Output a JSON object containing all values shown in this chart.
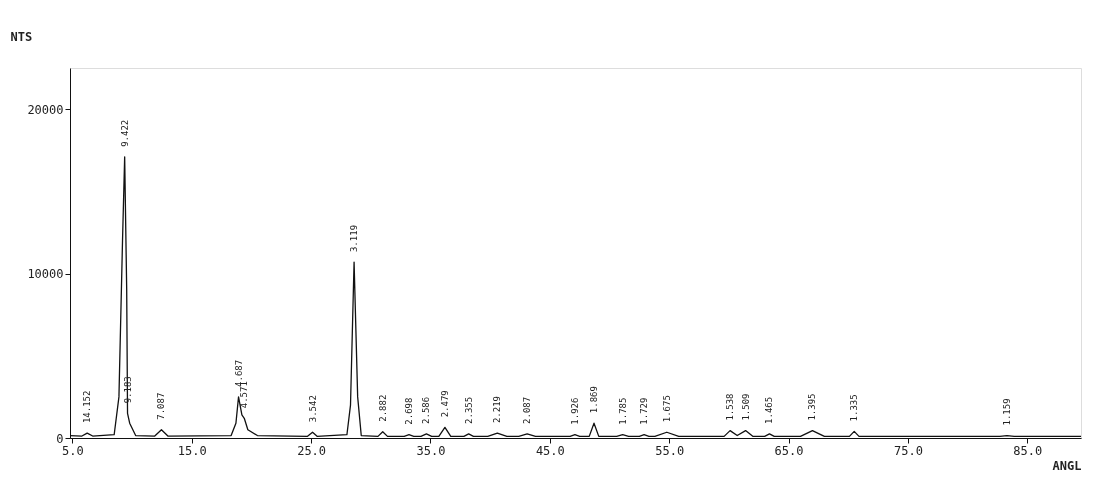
{
  "chart_data": {
    "type": "line",
    "ylabel": "NTS",
    "xlabel": "ANGL",
    "xlim": [
      4.8,
      89.5
    ],
    "ylim": [
      0,
      22500
    ],
    "xticks": [
      {
        "value": 5,
        "label": "5.0"
      },
      {
        "value": 15,
        "label": "15.0"
      },
      {
        "value": 25,
        "label": "25.0"
      },
      {
        "value": 35,
        "label": "35.0"
      },
      {
        "value": 45,
        "label": "45.0"
      },
      {
        "value": 55,
        "label": "55.0"
      },
      {
        "value": 65,
        "label": "65.0"
      },
      {
        "value": 75,
        "label": "75.0"
      },
      {
        "value": 85,
        "label": "85.0"
      }
    ],
    "yticks": [
      0,
      10000,
      20000
    ],
    "grid": false,
    "marker": "none",
    "line_style": "solid",
    "series": [
      {
        "color": "#111111",
        "x": [
          4.8,
          5.8,
          6.24,
          6.7,
          8.5,
          8.9,
          9.2,
          9.38,
          9.55,
          9.62,
          9.8,
          10.3,
          11.9,
          12.46,
          13.0,
          18.3,
          18.7,
          18.92,
          19.2,
          19.4,
          19.7,
          20.5,
          24.7,
          25.12,
          25.5,
          28.0,
          28.3,
          28.6,
          28.9,
          29.2,
          30.6,
          31.0,
          31.4,
          32.8,
          33.2,
          33.6,
          34.2,
          34.66,
          35.1,
          35.7,
          36.21,
          36.7,
          37.8,
          38.2,
          38.6,
          39.8,
          40.6,
          41.4,
          42.4,
          43.1,
          43.8,
          46.7,
          47.1,
          47.5,
          48.3,
          48.7,
          49.1,
          50.6,
          51.1,
          51.6,
          52.5,
          52.9,
          53.3,
          53.8,
          54.8,
          55.8,
          59.6,
          60.1,
          60.7,
          61.4,
          62.0,
          63.0,
          63.4,
          63.8,
          66.0,
          67.0,
          68.0,
          70.1,
          70.5,
          70.9,
          82.7,
          83.3,
          83.9,
          89.5
        ],
        "values": [
          150,
          120,
          300,
          120,
          200,
          2500,
          12000,
          17100,
          9000,
          1500,
          900,
          150,
          120,
          500,
          120,
          150,
          900,
          2500,
          1400,
          1200,
          500,
          150,
          100,
          350,
          100,
          200,
          2000,
          10700,
          2500,
          150,
          100,
          380,
          100,
          100,
          200,
          100,
          100,
          250,
          100,
          100,
          650,
          100,
          100,
          250,
          100,
          100,
          300,
          100,
          100,
          250,
          100,
          100,
          200,
          100,
          100,
          900,
          100,
          100,
          200,
          100,
          100,
          200,
          100,
          100,
          350,
          100,
          100,
          450,
          150,
          450,
          100,
          100,
          250,
          100,
          100,
          450,
          100,
          100,
          400,
          100,
          100,
          150,
          100,
          100
        ]
      }
    ],
    "annotations": [
      {
        "text": "14.152",
        "x": 6.24,
        "y": 300
      },
      {
        "text": "9.422",
        "x": 9.38,
        "y": 17100
      },
      {
        "text": "9.183",
        "x": 9.62,
        "y": 1500
      },
      {
        "text": "7.087",
        "x": 12.46,
        "y": 500
      },
      {
        "text": "4.687",
        "x": 18.92,
        "y": 2500
      },
      {
        "text": "4.571",
        "x": 19.4,
        "y": 1200
      },
      {
        "text": "3.542",
        "x": 25.12,
        "y": 350
      },
      {
        "text": "3.119",
        "x": 28.6,
        "y": 10700
      },
      {
        "text": "2.882",
        "x": 31.0,
        "y": 380
      },
      {
        "text": "2.698",
        "x": 33.2,
        "y": 200
      },
      {
        "text": "2.586",
        "x": 34.66,
        "y": 250
      },
      {
        "text": "2.479",
        "x": 36.21,
        "y": 650
      },
      {
        "text": "2.355",
        "x": 38.2,
        "y": 250
      },
      {
        "text": "2.219",
        "x": 40.6,
        "y": 300
      },
      {
        "text": "2.087",
        "x": 43.1,
        "y": 250
      },
      {
        "text": "1.926",
        "x": 47.1,
        "y": 200
      },
      {
        "text": "1.869",
        "x": 48.7,
        "y": 900
      },
      {
        "text": "1.785",
        "x": 51.1,
        "y": 200
      },
      {
        "text": "1.729",
        "x": 52.9,
        "y": 200
      },
      {
        "text": "1.675",
        "x": 54.8,
        "y": 350
      },
      {
        "text": "1.538",
        "x": 60.1,
        "y": 450
      },
      {
        "text": "1.509",
        "x": 61.4,
        "y": 450
      },
      {
        "text": "1.465",
        "x": 63.4,
        "y": 250
      },
      {
        "text": "1.395",
        "x": 67.0,
        "y": 450
      },
      {
        "text": "1.335",
        "x": 70.5,
        "y": 400
      },
      {
        "text": "1.159",
        "x": 83.3,
        "y": 150
      }
    ]
  }
}
